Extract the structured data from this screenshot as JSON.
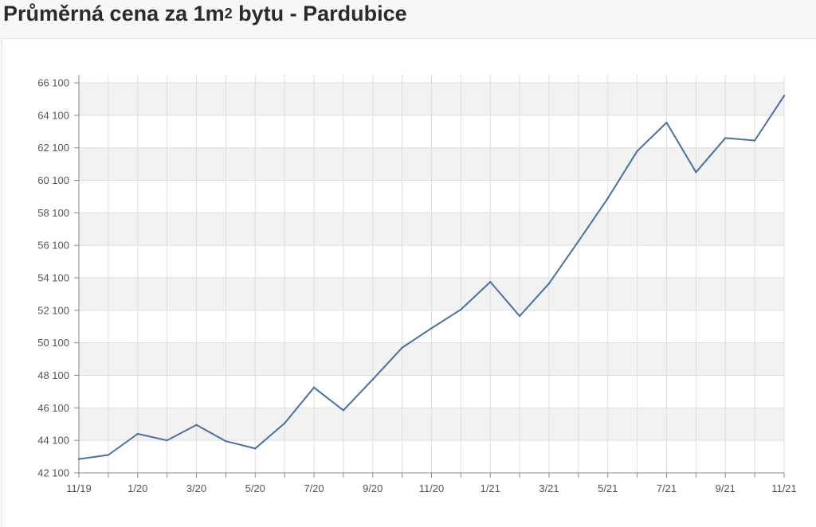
{
  "page": {
    "title_main": "Průměrná cena za 1m",
    "title_sup": "2",
    "title_rest": " bytu - Pardubice"
  },
  "chart_data": {
    "type": "line",
    "title": "Průměrná cena za 1m2 bytu - Pardubice",
    "xlabel": "",
    "ylabel": "",
    "x": [
      "11/19",
      "12/19",
      "1/20",
      "2/20",
      "3/20",
      "4/20",
      "5/20",
      "6/20",
      "7/20",
      "8/20",
      "9/20",
      "10/20",
      "11/20",
      "12/20",
      "1/21",
      "2/21",
      "3/21",
      "4/21",
      "5/21",
      "6/21",
      "7/21",
      "8/21",
      "9/21",
      "10/21",
      "11/21"
    ],
    "x_tick_labels": [
      "11/19",
      "1/20",
      "3/20",
      "5/20",
      "7/20",
      "9/20",
      "11/20",
      "1/21",
      "3/21",
      "5/21",
      "7/21",
      "9/21",
      "11/21"
    ],
    "series": [
      {
        "values": [
          42950,
          43200,
          44500,
          44100,
          45050,
          44050,
          43600,
          45150,
          47350,
          45950,
          47850,
          49800,
          51000,
          52150,
          53850,
          51750,
          53750,
          56350,
          59000,
          61900,
          63650,
          60600,
          62700,
          62550,
          65300
        ],
        "color": "#4a6fa5"
      }
    ],
    "y_tick_labels": [
      "42 100",
      "44 100",
      "46 100",
      "48 100",
      "50 100",
      "52 100",
      "54 100",
      "56 100",
      "58 100",
      "60 100",
      "62 100",
      "64 100",
      "66 100"
    ],
    "y_ticks": [
      42100,
      44100,
      46100,
      48100,
      50100,
      52100,
      54100,
      56100,
      58100,
      60100,
      62100,
      64100,
      66100
    ],
    "ylim": [
      42100,
      66100
    ],
    "grid": true,
    "band_color": "#f2f2f2",
    "grid_color": "#dedede",
    "axis_color": "#8a8a8a"
  }
}
